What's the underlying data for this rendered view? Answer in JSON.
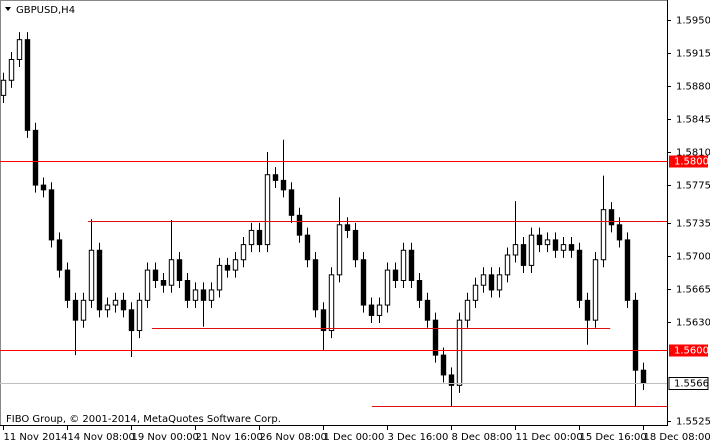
{
  "chart_data": {
    "type": "candlestick",
    "title": "GBPUSD,H4",
    "footer": "FIBO Group, © 2001-2014, MetaQuotes Software Corp.",
    "xlim": [
      -0.4,
      83
    ],
    "ylim": [
      1.5521,
      1.5971
    ],
    "xticks": [
      {
        "value": 0,
        "label": "11 Nov 2014"
      },
      {
        "value": 8,
        "label": "14 Nov 08:00"
      },
      {
        "value": 16,
        "label": "19 Nov 00:00"
      },
      {
        "value": 24,
        "label": "21 Nov 16:00"
      },
      {
        "value": 32,
        "label": "26 Nov 08:00"
      },
      {
        "value": 40,
        "label": "1 Dec 00:00"
      },
      {
        "value": 48,
        "label": "3 Dec 16:00"
      },
      {
        "value": 56,
        "label": "8 Dec 08:00"
      },
      {
        "value": 64,
        "label": "11 Dec 00:00"
      },
      {
        "value": 72,
        "label": "15 Dec 16:00"
      },
      {
        "value": 80,
        "label": "18 Dec 08:00"
      }
    ],
    "yticks": [
      {
        "value": 1.595,
        "label": "1.5950"
      },
      {
        "value": 1.5915,
        "label": "1.5915"
      },
      {
        "value": 1.588,
        "label": "1.5880"
      },
      {
        "value": 1.5845,
        "label": "1.5845"
      },
      {
        "value": 1.581,
        "label": "1.5810"
      },
      {
        "value": 1.5775,
        "label": "1.5775"
      },
      {
        "value": 1.5735,
        "label": "1.5735"
      },
      {
        "value": 1.57,
        "label": "1.5700"
      },
      {
        "value": 1.5665,
        "label": "1.5665"
      },
      {
        "value": 1.563,
        "label": "1.5630"
      },
      {
        "value": 1.5525,
        "label": "1.5525"
      }
    ],
    "levels": [
      {
        "value": 1.58,
        "label": "1.5800",
        "color": "#ff0000"
      },
      {
        "value": 1.56,
        "label": "1.5600",
        "color": "#ff0000"
      }
    ],
    "bid": {
      "value": 1.5566,
      "label": "1.5566",
      "color": "#c0c0c0"
    },
    "segments": [
      {
        "value": 1.5737,
        "x_from": 10.6,
        "x_to": 83,
        "color": "#e01010"
      },
      {
        "value": 1.5624,
        "x_from": 18.6,
        "x_to": 75.9,
        "color": "#e01010"
      },
      {
        "value": 1.5541,
        "x_from": 46.1,
        "x_to": 83,
        "color": "#e01010"
      }
    ],
    "open": [
      1.587,
      1.5886,
      1.5908,
      1.5929,
      1.5833,
      1.5775,
      1.577,
      1.5717,
      1.5685,
      1.5653,
      1.5632,
      1.5653,
      1.5706,
      1.5643,
      1.5648,
      1.5653,
      1.5643,
      1.5621,
      1.5653,
      1.5685,
      1.5674,
      1.5669,
      1.5696,
      1.5674,
      1.5653,
      1.5664,
      1.5653,
      1.5664,
      1.569,
      1.5685,
      1.5696,
      1.5712,
      1.5727,
      1.5712,
      1.5786,
      1.578,
      1.577,
      1.5743,
      1.5722,
      1.5696,
      1.5643,
      1.5621,
      1.568,
      1.5733,
      1.5727,
      1.5696,
      1.5648,
      1.5637,
      1.5648,
      1.5685,
      1.5674,
      1.5706,
      1.5674,
      1.5653,
      1.5632,
      1.5595,
      1.5574,
      1.5563,
      1.5632,
      1.5653,
      1.5669,
      1.568,
      1.5664,
      1.568,
      1.5701,
      1.5712,
      1.569,
      1.5722,
      1.5712,
      1.5717,
      1.5706,
      1.5712,
      1.5706,
      1.5653,
      1.5632,
      1.5696,
      1.5749,
      1.5733,
      1.5717,
      1.5653,
      1.5579
    ],
    "high": [
      1.5894,
      1.5916,
      1.5937,
      1.5937,
      1.5841,
      1.5783,
      1.5778,
      1.5725,
      1.5693,
      1.5661,
      1.5661,
      1.5739,
      1.5714,
      1.5656,
      1.5661,
      1.5661,
      1.5651,
      1.5661,
      1.5693,
      1.5693,
      1.5682,
      1.5738,
      1.5704,
      1.5682,
      1.5672,
      1.5672,
      1.5672,
      1.5698,
      1.5698,
      1.5704,
      1.572,
      1.5735,
      1.5735,
      1.581,
      1.5794,
      1.5823,
      1.5778,
      1.5751,
      1.573,
      1.5704,
      1.5651,
      1.5688,
      1.5762,
      1.5741,
      1.5735,
      1.5704,
      1.5656,
      1.5656,
      1.5693,
      1.5693,
      1.5714,
      1.5714,
      1.5682,
      1.5661,
      1.564,
      1.5603,
      1.5582,
      1.564,
      1.5661,
      1.5677,
      1.5688,
      1.5688,
      1.5688,
      1.5709,
      1.5758,
      1.572,
      1.573,
      1.573,
      1.5725,
      1.5725,
      1.572,
      1.572,
      1.5714,
      1.5661,
      1.5704,
      1.5785,
      1.5757,
      1.5741,
      1.5725,
      1.5661,
      1.5587
    ],
    "low": [
      1.5862,
      1.5878,
      1.59,
      1.5825,
      1.5767,
      1.5762,
      1.5709,
      1.5677,
      1.5645,
      1.5595,
      1.5624,
      1.5645,
      1.5635,
      1.5635,
      1.564,
      1.5635,
      1.5593,
      1.5613,
      1.5645,
      1.5666,
      1.5661,
      1.5661,
      1.5666,
      1.5645,
      1.5645,
      1.5625,
      1.5645,
      1.5656,
      1.5677,
      1.5677,
      1.5688,
      1.5704,
      1.5704,
      1.5704,
      1.5772,
      1.5762,
      1.5735,
      1.5714,
      1.5688,
      1.5635,
      1.56,
      1.5613,
      1.5672,
      1.5719,
      1.5688,
      1.564,
      1.5629,
      1.5629,
      1.564,
      1.5666,
      1.5666,
      1.5666,
      1.5645,
      1.5624,
      1.5587,
      1.5566,
      1.554,
      1.5555,
      1.5624,
      1.5645,
      1.5661,
      1.5656,
      1.5656,
      1.5672,
      1.5693,
      1.5682,
      1.5682,
      1.5704,
      1.5704,
      1.5698,
      1.5698,
      1.5698,
      1.5645,
      1.5606,
      1.5624,
      1.5688,
      1.5725,
      1.5709,
      1.5645,
      1.554,
      1.5558
    ],
    "close": [
      1.5886,
      1.5908,
      1.5929,
      1.5833,
      1.5775,
      1.577,
      1.5717,
      1.5685,
      1.5653,
      1.5632,
      1.5653,
      1.5706,
      1.5643,
      1.5648,
      1.5653,
      1.5643,
      1.5621,
      1.5653,
      1.5685,
      1.5674,
      1.5669,
      1.5696,
      1.5674,
      1.5653,
      1.5664,
      1.5653,
      1.5664,
      1.569,
      1.5685,
      1.5696,
      1.5712,
      1.5727,
      1.5712,
      1.5786,
      1.578,
      1.577,
      1.5743,
      1.5722,
      1.5696,
      1.5643,
      1.5621,
      1.568,
      1.5733,
      1.5727,
      1.5696,
      1.5648,
      1.5637,
      1.5648,
      1.5685,
      1.5674,
      1.5706,
      1.5674,
      1.5653,
      1.5632,
      1.5595,
      1.5574,
      1.5563,
      1.5632,
      1.5653,
      1.5669,
      1.568,
      1.5664,
      1.568,
      1.5701,
      1.5712,
      1.569,
      1.5722,
      1.5712,
      1.5717,
      1.5706,
      1.5712,
      1.5706,
      1.5653,
      1.5632,
      1.5696,
      1.5749,
      1.5733,
      1.5717,
      1.5653,
      1.5579,
      1.5566
    ]
  }
}
